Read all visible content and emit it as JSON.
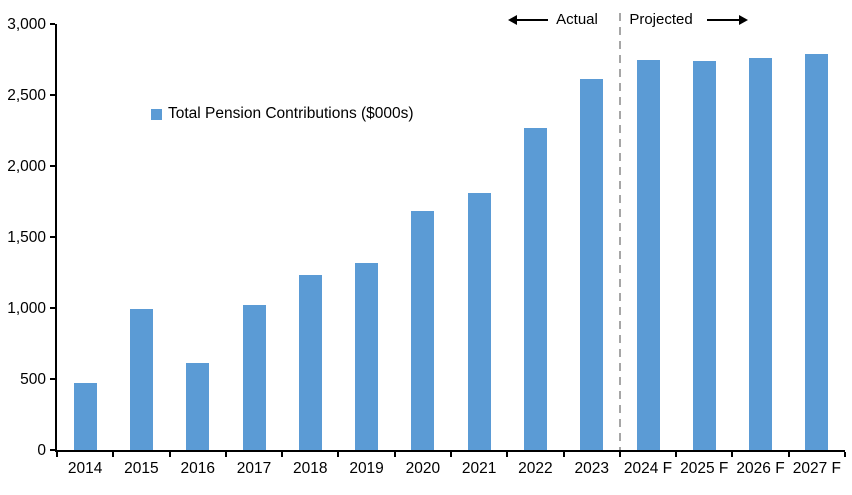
{
  "chart_data": {
    "type": "bar",
    "categories": [
      "2014",
      "2015",
      "2016",
      "2017",
      "2018",
      "2019",
      "2020",
      "2021",
      "2022",
      "2023",
      "2024 F",
      "2025 F",
      "2026 F",
      "2027 F"
    ],
    "values": [
      470,
      990,
      610,
      1020,
      1230,
      1320,
      1680,
      1810,
      2270,
      2610,
      2750,
      2740,
      2760,
      2790
    ],
    "series_name": "Total Pension Contributions ($000s)",
    "title": "",
    "xlabel": "",
    "ylabel": "",
    "ylim": [
      0,
      3000
    ],
    "ytick_step": 500,
    "ytick_labels": [
      "0",
      "500",
      "1,000",
      "1,500",
      "2,000",
      "2,500",
      "3,000"
    ],
    "grid": false,
    "legend_position": "inside-upper-left",
    "annotations": {
      "actual_label": "Actual",
      "projected_label": "Projected",
      "divider_after_category": "2023"
    },
    "colors": {
      "bar": "#5B9BD5",
      "divider": "#A6A6A6",
      "axis": "#000000",
      "text": "#000000",
      "background": "#FFFFFF"
    }
  }
}
